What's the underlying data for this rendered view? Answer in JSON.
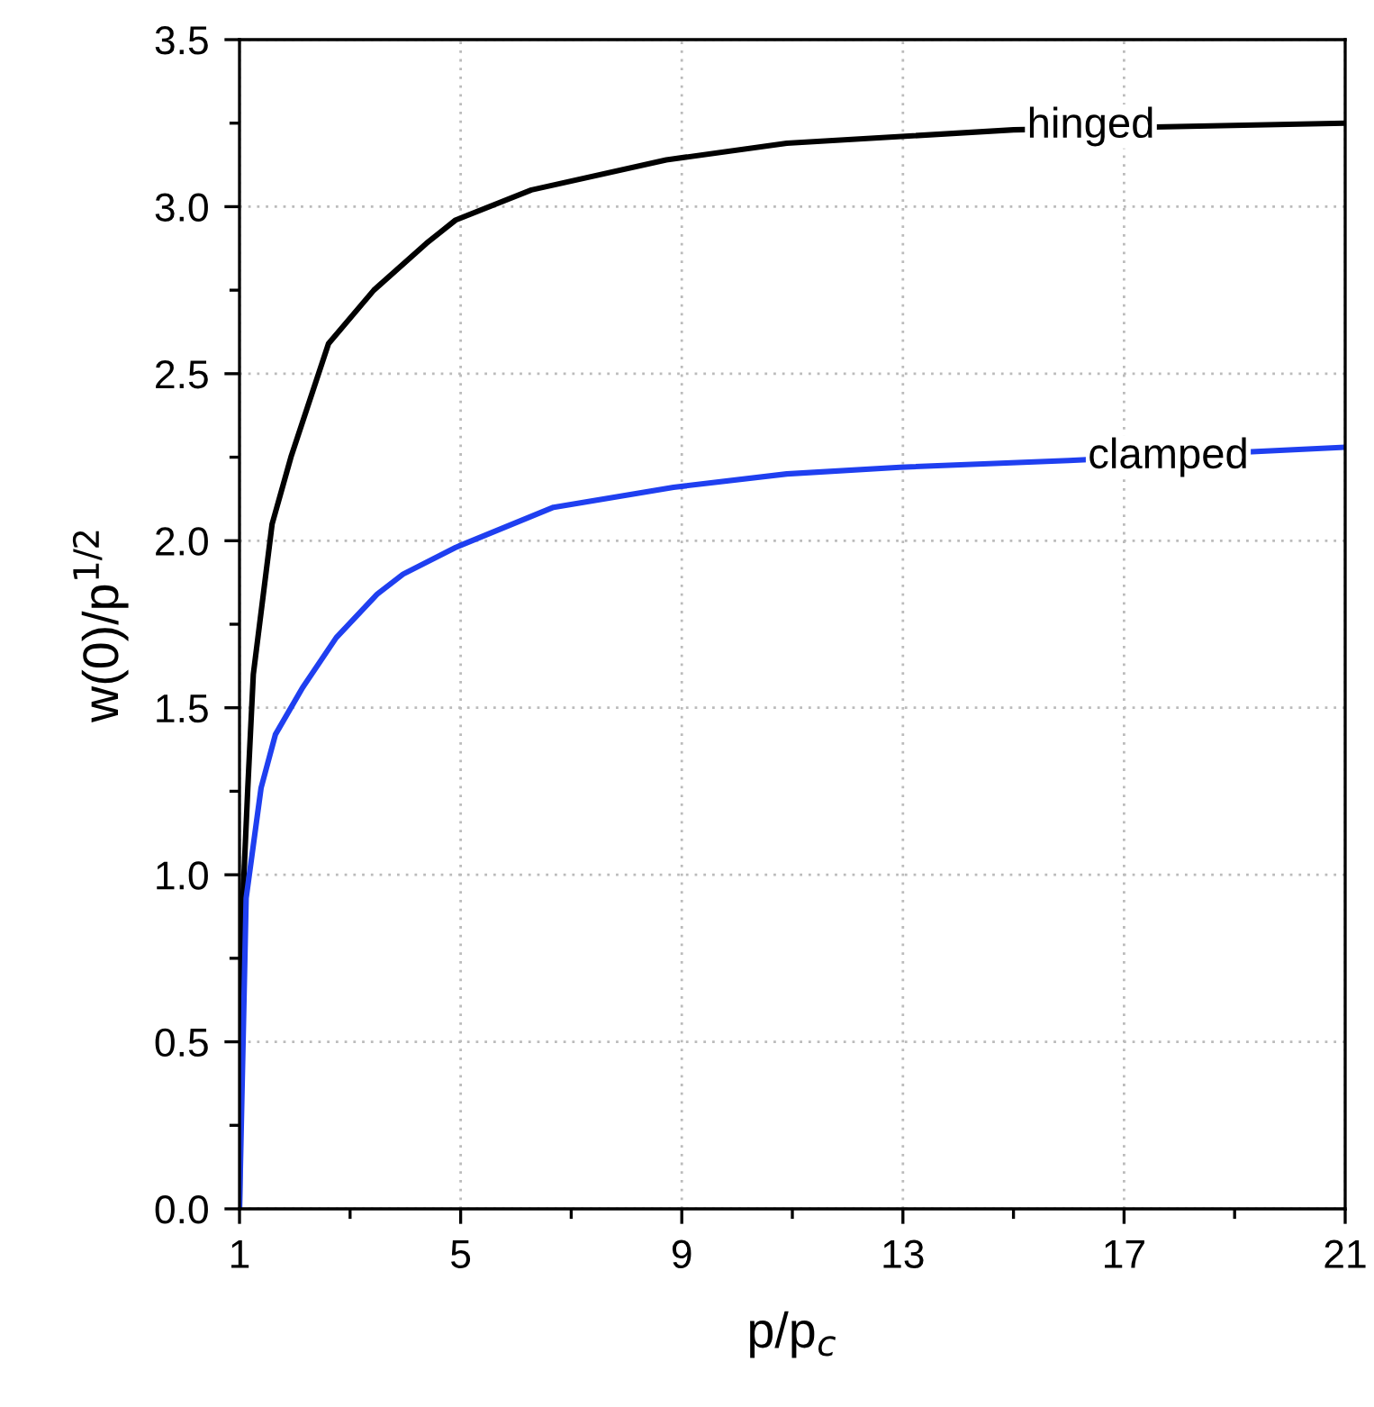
{
  "chart_data": {
    "type": "line",
    "xlabel": "p/p$_{c}$",
    "ylabel": "w(0)/p$^{1/2}$",
    "xlim": [
      1,
      21
    ],
    "xticks": [
      1,
      5,
      9,
      13,
      17,
      21
    ],
    "ylim": [
      0,
      3.5
    ],
    "yticks": [
      {
        "value": 0,
        "label": "0.0"
      },
      {
        "value": 0.5,
        "label": "0.5"
      },
      {
        "value": 1,
        "label": "1.0"
      },
      {
        "value": 1.5,
        "label": "1.5"
      },
      {
        "value": 2,
        "label": "2.0"
      },
      {
        "value": 2.5,
        "label": "2.5"
      },
      {
        "value": 3,
        "label": "3.0"
      },
      {
        "value": 3.5,
        "label": "3.5"
      }
    ],
    "grid": true,
    "marker": "none",
    "line_style": "solid",
    "legend": false,
    "series": [
      {
        "color": "#000000",
        "x": [
          1.0,
          1.03,
          1.15,
          1.25,
          1.59,
          1.93,
          2.61,
          3.43,
          4.38,
          4.91,
          6.28,
          8.72,
          10.9,
          15.0,
          21.0
        ],
        "values": [
          0.0,
          0.81,
          1.26,
          1.6,
          2.05,
          2.25,
          2.59,
          2.75,
          2.89,
          2.96,
          3.05,
          3.14,
          3.19,
          3.23,
          3.25
        ]
      },
      {
        "color": "#1f3ff0",
        "x": [
          1.0,
          1.12,
          1.39,
          1.65,
          2.14,
          2.75,
          3.49,
          3.96,
          4.91,
          6.68,
          8.85,
          10.9,
          12.95,
          16.0,
          21.0
        ],
        "values": [
          0.0,
          0.93,
          1.26,
          1.42,
          1.56,
          1.71,
          1.84,
          1.9,
          1.98,
          2.1,
          2.16,
          2.2,
          2.22,
          2.24,
          2.28
        ]
      }
    ],
    "annotations": [
      {
        "text": "hinged",
        "x": 16.4,
        "y": 3.24
      },
      {
        "text": "clamped",
        "x": 17.8,
        "y": 2.25
      }
    ]
  }
}
